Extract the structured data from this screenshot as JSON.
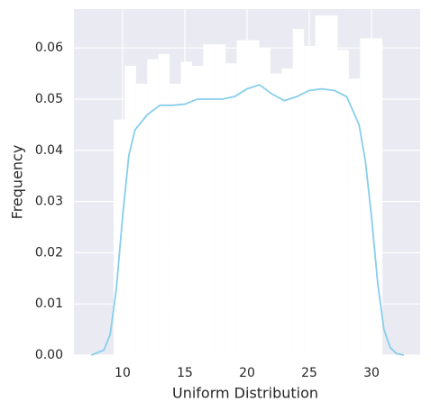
{
  "chart_data": {
    "type": "histogram",
    "xlabel": "Uniform Distribution",
    "ylabel": "Frequency",
    "bins": [
      9.28,
      10.18,
      11.08,
      11.98,
      12.88,
      13.78,
      14.68,
      15.58,
      16.48,
      17.38,
      18.28,
      19.18,
      20.08,
      20.98,
      21.88,
      22.78,
      23.68,
      24.58,
      25.48,
      26.38,
      27.28,
      28.18,
      29.08,
      29.98,
      30.88
    ],
    "values": [
      0.046,
      0.0565,
      0.053,
      0.0578,
      0.0588,
      0.053,
      0.0573,
      0.0565,
      0.0607,
      0.0607,
      0.057,
      0.0615,
      0.0615,
      0.06,
      0.055,
      0.056,
      0.0637,
      0.0604,
      0.0663,
      0.0663,
      0.0596,
      0.054,
      0.0619,
      0.0619
    ],
    "color": "#ffffff",
    "kde": {
      "color": "#87ceeb",
      "x": [
        7.5,
        8.5,
        9,
        9.5,
        10,
        10.5,
        11,
        12,
        13,
        14,
        15,
        16,
        17,
        18,
        19,
        20,
        21,
        22,
        23,
        24,
        25,
        26,
        27,
        28,
        29,
        29.5,
        30,
        30.5,
        31,
        31.5,
        32,
        32.6
      ],
      "y": [
        0,
        0.001,
        0.004,
        0.013,
        0.027,
        0.039,
        0.044,
        0.047,
        0.0488,
        0.0488,
        0.049,
        0.05,
        0.05,
        0.05,
        0.0505,
        0.052,
        0.0528,
        0.051,
        0.0497,
        0.0505,
        0.0517,
        0.052,
        0.0517,
        0.0505,
        0.045,
        0.038,
        0.027,
        0.014,
        0.005,
        0.0015,
        0.0003,
        0
      ]
    },
    "xlim": [
      6.09,
      33.91
    ],
    "ylim": [
      0,
      0.0676
    ],
    "xticks": [
      10,
      15,
      20,
      25,
      30
    ],
    "yticks": [
      {
        "value": 0,
        "label": "0.00"
      },
      {
        "value": 0.01,
        "label": "0.01"
      },
      {
        "value": 0.02,
        "label": "0.02"
      },
      {
        "value": 0.03,
        "label": "0.03"
      },
      {
        "value": 0.04,
        "label": "0.04"
      },
      {
        "value": 0.05,
        "label": "0.05"
      },
      {
        "value": 0.06,
        "label": "0.06"
      }
    ],
    "grid": true
  }
}
